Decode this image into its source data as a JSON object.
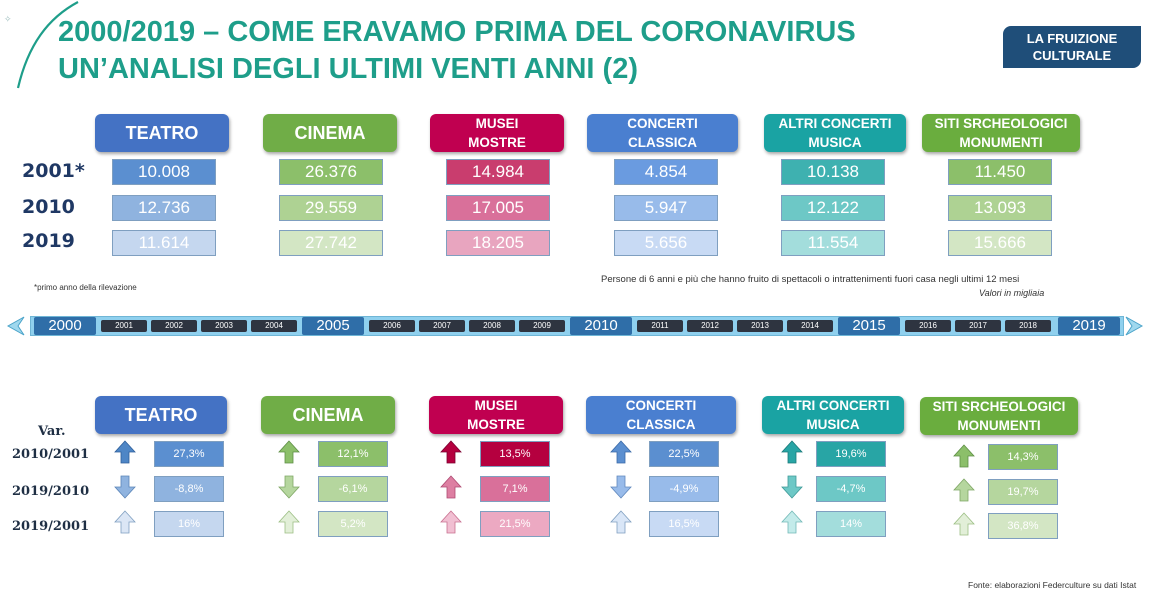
{
  "title_line1": "2000/2019 – COME ERAVAMO  PRIMA DEL CORONAVIRUS",
  "title_line2": "UN’ANALISI DEGLI ULTIMI VENTI ANNI (2)",
  "badge": {
    "line1": "LA FRUIZIONE",
    "line2": "CULTURALE"
  },
  "categories": [
    {
      "l1": "TEATRO",
      "l2": "",
      "color": "#4472c4"
    },
    {
      "l1": "CINEMA",
      "l2": "",
      "color": "#70ad47"
    },
    {
      "l1": "MUSEI",
      "l2": "MOSTRE",
      "color": "#c00050"
    },
    {
      "l1": "CONCERTI",
      "l2": "CLASSICA",
      "color": "#4a7fd0"
    },
    {
      "l1": "ALTRI CONCERTI",
      "l2": "MUSICA",
      "color": "#1aa3a3"
    },
    {
      "l1": "SITI SRCHEOLOGICI",
      "l2": "MONUMENTI",
      "color": "#6aad3e"
    }
  ],
  "years": [
    "2001*",
    "2010",
    "2019"
  ],
  "values": [
    [
      "10.008",
      "26.376",
      "14.984",
      "4.854",
      "10.138",
      "11.450"
    ],
    [
      "12.736",
      "29.559",
      "17.005",
      "5.947",
      "12.122",
      "13.093"
    ],
    [
      "11.614",
      "27.742",
      "18.205",
      "5.656",
      "11.554",
      "15.666"
    ]
  ],
  "footnote": "*primo anno della rilevazione",
  "subtitle": "Persone di 6 anni e più che hanno fruito di spettacoli o intrattenimenti fuori casa negli ultimi 12 mesi",
  "units": "Valori in  migliaia",
  "timeline": {
    "big": [
      "2000",
      "2005",
      "2010",
      "2015",
      "2019"
    ],
    "small": [
      "2001",
      "2002",
      "2003",
      "2004",
      "2006",
      "2007",
      "2008",
      "2009",
      "2011",
      "2012",
      "2013",
      "2014",
      "2016",
      "2017",
      "2018"
    ]
  },
  "var_title": "Var.",
  "var_labels": [
    "2010/2001",
    "2019/2010",
    "2019/2001"
  ],
  "var_values": [
    [
      "27,3%",
      "12,1%",
      "13,5%",
      "22,5%",
      "19,6%",
      "14,3%"
    ],
    [
      "-8,8%",
      "-6,1%",
      "7,1%",
      "-4,9%",
      "-4,7%",
      "19,7%"
    ],
    [
      "16%",
      "5,2%",
      "21,5%",
      "16,5%",
      "14%",
      "36,8%"
    ]
  ],
  "source": "Fonte: elaborazioni Federculture su dati Istat"
}
